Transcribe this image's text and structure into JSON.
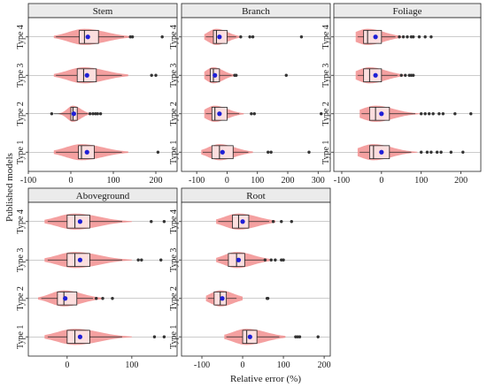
{
  "chart_data": [
    {
      "type": "box",
      "title": "Stem",
      "categories": [
        "Type 1",
        "Type 2",
        "Type 3",
        "Type 4"
      ],
      "xlim": [
        -100,
        250
      ],
      "xticks": [
        -100,
        0,
        100,
        200
      ],
      "series": [
        {
          "name": "Type 1",
          "min": -35,
          "q1": 18,
          "median": 25,
          "q3": 55,
          "max": 120,
          "mean": 38,
          "spread": 55,
          "outliers": [
            205
          ]
        },
        {
          "name": "Type 2",
          "min": -40,
          "q1": 0,
          "median": 5,
          "q3": 15,
          "max": 40,
          "mean": 7,
          "spread": 20,
          "outliers": [
            -45,
            45,
            52,
            58,
            63,
            70
          ]
        },
        {
          "name": "Type 3",
          "min": -35,
          "q1": 15,
          "median": 30,
          "q3": 60,
          "max": 120,
          "mean": 38,
          "spread": 55,
          "outliers": [
            190,
            200
          ]
        },
        {
          "name": "Type 4",
          "min": -35,
          "q1": 20,
          "median": 32,
          "q3": 65,
          "max": 125,
          "mean": 40,
          "spread": 55,
          "outliers": [
            140,
            145,
            215
          ]
        }
      ]
    },
    {
      "type": "box",
      "title": "Branch",
      "categories": [
        "Type 1",
        "Type 2",
        "Type 3",
        "Type 4"
      ],
      "xlim": [
        -150,
        340
      ],
      "xticks": [
        -100,
        0,
        100,
        200,
        300
      ],
      "series": [
        {
          "name": "Type 1",
          "min": -80,
          "q1": -50,
          "median": -25,
          "q3": 20,
          "max": 70,
          "mean": -15,
          "spread": 55,
          "outliers": [
            135,
            145,
            270
          ]
        },
        {
          "name": "Type 2",
          "min": -70,
          "q1": -50,
          "median": -40,
          "q3": 0,
          "max": 40,
          "mean": -25,
          "spread": 45,
          "outliers": [
            80,
            90,
            310
          ]
        },
        {
          "name": "Type 3",
          "min": -70,
          "q1": -55,
          "median": -45,
          "q3": -25,
          "max": 15,
          "mean": -40,
          "spread": 35,
          "outliers": [
            25,
            30,
            195
          ]
        },
        {
          "name": "Type 4",
          "min": -70,
          "q1": -45,
          "median": -35,
          "q3": 0,
          "max": 30,
          "mean": -25,
          "spread": 40,
          "outliers": [
            45,
            75,
            85,
            245
          ]
        }
      ]
    },
    {
      "type": "box",
      "title": "Foliage",
      "categories": [
        "Type 1",
        "Type 2",
        "Type 3",
        "Type 4"
      ],
      "xlim": [
        -120,
        250
      ],
      "xticks": [
        -100,
        0,
        100,
        200
      ],
      "series": [
        {
          "name": "Type 1",
          "min": -55,
          "q1": -30,
          "median": -20,
          "q3": 20,
          "max": 75,
          "mean": 0,
          "spread": 50,
          "outliers": [
            100,
            115,
            125,
            140,
            150,
            175,
            205
          ]
        },
        {
          "name": "Type 2",
          "min": -50,
          "q1": -30,
          "median": -15,
          "q3": 20,
          "max": 85,
          "mean": 0,
          "spread": 50,
          "outliers": [
            100,
            110,
            120,
            130,
            145,
            155,
            185,
            225
          ]
        },
        {
          "name": "Type 3",
          "min": -60,
          "q1": -45,
          "median": -30,
          "q3": 0,
          "max": 40,
          "mean": -15,
          "spread": 45,
          "outliers": [
            50,
            60,
            70,
            75,
            80
          ]
        },
        {
          "name": "Type 4",
          "min": -60,
          "q1": -45,
          "median": -35,
          "q3": 0,
          "max": 35,
          "mean": -15,
          "spread": 45,
          "outliers": [
            45,
            55,
            65,
            75,
            80,
            95,
            110,
            125
          ]
        }
      ]
    },
    {
      "type": "box",
      "title": "Aboveground",
      "categories": [
        "Type 1",
        "Type 2",
        "Type 3",
        "Type 4"
      ],
      "xlim": [
        -60,
        170
      ],
      "xticks": [
        0,
        100
      ],
      "series": [
        {
          "name": "Type 1",
          "min": -30,
          "q1": 0,
          "median": 12,
          "q3": 35,
          "max": 85,
          "mean": 20,
          "spread": 40,
          "outliers": [
            135,
            150
          ]
        },
        {
          "name": "Type 2",
          "min": -40,
          "q1": -15,
          "median": -5,
          "q3": 15,
          "max": 40,
          "mean": -3,
          "spread": 30,
          "outliers": [
            45,
            55,
            70
          ]
        },
        {
          "name": "Type 3",
          "min": -30,
          "q1": 0,
          "median": 12,
          "q3": 35,
          "max": 85,
          "mean": 20,
          "spread": 40,
          "outliers": [
            110,
            115,
            145
          ]
        },
        {
          "name": "Type 4",
          "min": -30,
          "q1": 0,
          "median": 12,
          "q3": 35,
          "max": 85,
          "mean": 20,
          "spread": 40,
          "outliers": [
            130,
            150
          ]
        }
      ]
    },
    {
      "type": "box",
      "title": "Root",
      "categories": [
        "Type 1",
        "Type 2",
        "Type 3",
        "Type 4"
      ],
      "xlim": [
        -150,
        215
      ],
      "xticks": [
        -100,
        0,
        100,
        200
      ],
      "series": [
        {
          "name": "Type 1",
          "min": -40,
          "q1": 0,
          "median": 10,
          "q3": 35,
          "max": 90,
          "mean": 18,
          "spread": 50,
          "outliers": [
            130,
            135,
            140,
            185
          ]
        },
        {
          "name": "Type 2",
          "min": -85,
          "q1": -70,
          "median": -55,
          "q3": -40,
          "max": -15,
          "mean": -50,
          "spread": 35,
          "outliers": [
            60,
            62
          ]
        },
        {
          "name": "Type 3",
          "min": -60,
          "q1": -35,
          "median": -15,
          "q3": 5,
          "max": 55,
          "mean": -10,
          "spread": 45,
          "outliers": [
            55,
            70,
            80,
            95,
            100
          ]
        },
        {
          "name": "Type 4",
          "min": -60,
          "q1": -25,
          "median": -10,
          "q3": 15,
          "max": 65,
          "mean": 0,
          "spread": 50,
          "outliers": [
            75,
            95,
            120
          ]
        }
      ]
    }
  ],
  "xlabel": "Relative error (%)",
  "ylabel": "Published models"
}
